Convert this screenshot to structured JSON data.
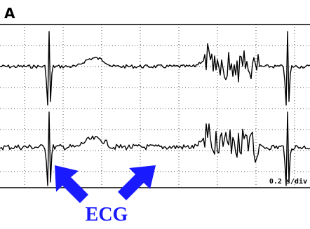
{
  "panel_label": "A",
  "scale_label": "0.2 s/div",
  "annotation": "ECG"
}
